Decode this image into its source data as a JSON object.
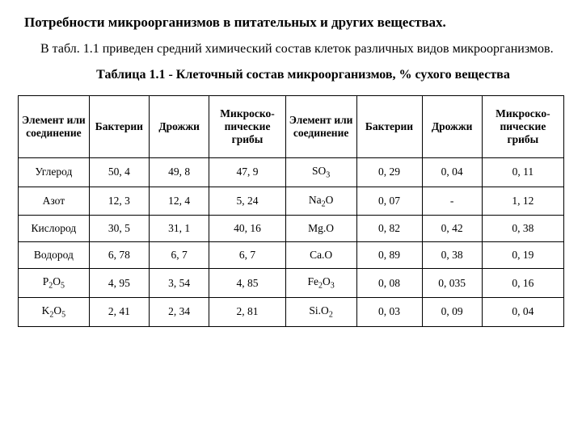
{
  "heading": "Потребности микроорганизмов в питательных и других веществах.",
  "intro": "В табл. 1.1 приведен средний химический состав клеток различных видов микроорганизмов.",
  "caption": "Таблица 1.1 - Клеточный состав микроорганизмов, % сухого вещества",
  "headers": {
    "h1": "Элемент или соединение",
    "h2": "Бактерии",
    "h3": "Дрожжи",
    "h4": "Микроско-пические грибы",
    "h5": "Элемент или соединение",
    "h6": "Бактерии",
    "h7": "Дрожжи",
    "h8": "Микроско-пические грибы"
  },
  "rows": [
    {
      "c1": "Углерод",
      "c2": "50, 4",
      "c3": "49, 8",
      "c4": "47, 9",
      "c5": "SO<sub class='sub'>3</sub>",
      "c6": "0, 29",
      "c7": "0, 04",
      "c8": "0, 11"
    },
    {
      "c1": "Азот",
      "c2": "12, 3",
      "c3": "12, 4",
      "c4": "5, 24",
      "c5": "Na<sub class='sub'>2</sub>O",
      "c6": "0, 07",
      "c7": "-",
      "c8": "1, 12"
    },
    {
      "c1": "Кислород",
      "c2": "30, 5",
      "c3": "31, 1",
      "c4": "40, 16",
      "c5": "Mg.O",
      "c6": "0, 82",
      "c7": "0, 42",
      "c8": "0, 38"
    },
    {
      "c1": "Водород",
      "c2": "6, 78",
      "c3": "6, 7",
      "c4": "6, 7",
      "c5": "Ca.O",
      "c6": "0, 89",
      "c7": "0, 38",
      "c8": "0, 19"
    },
    {
      "c1": "P<sub class='sub'>2</sub>O<sub class='sub'>5</sub>",
      "c2": "4, 95",
      "c3": "3, 54",
      "c4": "4, 85",
      "c5": "Fe<sub class='sub'>2</sub>O<sub class='sub'>3</sub>",
      "c6": "0, 08",
      "c7": "0, 035",
      "c8": "0, 16"
    },
    {
      "c1": "K<sub class='sub'>2</sub>O<sub class='sub'>5</sub>",
      "c2": "2, 41",
      "c3": "2, 34",
      "c4": "2, 81",
      "c5": "Si.O<sub class='sub'>2</sub>",
      "c6": "0, 03",
      "c7": "0, 09",
      "c8": "0, 04"
    }
  ]
}
